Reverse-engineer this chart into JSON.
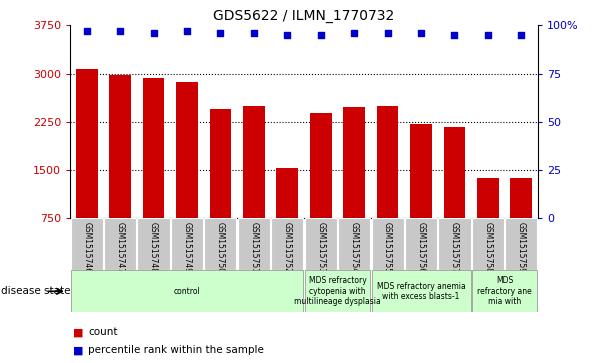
{
  "title": "GDS5622 / ILMN_1770732",
  "samples": [
    "GSM1515746",
    "GSM1515747",
    "GSM1515748",
    "GSM1515749",
    "GSM1515750",
    "GSM1515751",
    "GSM1515752",
    "GSM1515753",
    "GSM1515754",
    "GSM1515755",
    "GSM1515756",
    "GSM1515757",
    "GSM1515758",
    "GSM1515759"
  ],
  "counts": [
    3070,
    2970,
    2930,
    2860,
    2440,
    2490,
    1530,
    2380,
    2470,
    2500,
    2220,
    2160,
    1370,
    1370
  ],
  "percentile_ranks": [
    97,
    97,
    96,
    97,
    96,
    96,
    95,
    95,
    96,
    96,
    96,
    95,
    95,
    95
  ],
  "ylim_left": [
    750,
    3750
  ],
  "ylim_right": [
    0,
    100
  ],
  "yticks_left": [
    750,
    1500,
    2250,
    3000,
    3750
  ],
  "yticks_right_vals": [
    0,
    25,
    50,
    75,
    100
  ],
  "yticks_right_labels": [
    "0",
    "25",
    "50",
    "75",
    "100%"
  ],
  "bar_color": "#cc0000",
  "dot_color": "#0000cc",
  "tick_label_color_left": "#cc0000",
  "tick_label_color_right": "#0000cc",
  "background_color": "#ffffff",
  "sample_box_color": "#c8c8c8",
  "disease_groups": [
    {
      "label": "control",
      "start": 0,
      "end": 7,
      "color": "#ccffcc"
    },
    {
      "label": "MDS refractory\ncytopenia with\nmultilineage dysplasia",
      "start": 7,
      "end": 9,
      "color": "#ccffcc"
    },
    {
      "label": "MDS refractory anemia\nwith excess blasts-1",
      "start": 9,
      "end": 12,
      "color": "#ccffcc"
    },
    {
      "label": "MDS\nrefractory ane\nmia with",
      "start": 12,
      "end": 14,
      "color": "#ccffcc"
    }
  ]
}
